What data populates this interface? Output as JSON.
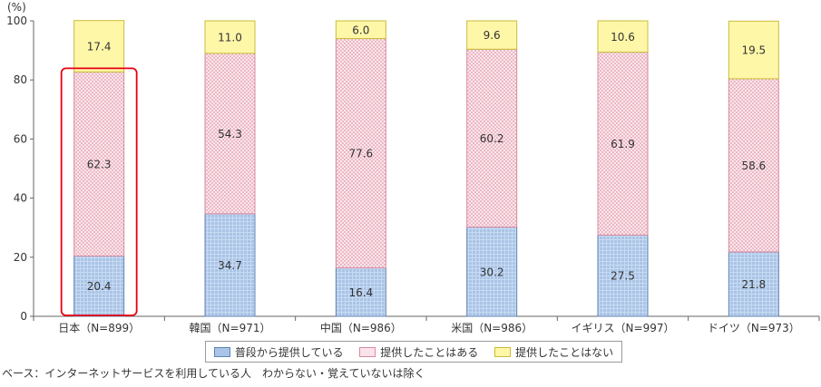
{
  "chart_data": {
    "type": "bar",
    "stacked": true,
    "unit_label": "(%)",
    "ylim": [
      0,
      100
    ],
    "yticks": [
      0,
      20,
      40,
      60,
      80,
      100
    ],
    "categories": [
      "日本（N=899）",
      "韓国（N=971）",
      "中国（N=986）",
      "米国（N=986）",
      "イギリス（N=997）",
      "ドイツ（N=973）"
    ],
    "series": [
      {
        "name": "普段から提供している",
        "values": [
          20.4,
          34.7,
          16.4,
          30.2,
          27.5,
          21.8
        ],
        "color": "#a9c4e6",
        "border": "#5f83b6",
        "pattern": "grid"
      },
      {
        "name": "提供したことはある",
        "values": [
          62.3,
          54.3,
          77.6,
          60.2,
          61.9,
          58.6
        ],
        "color": "#fbe3ea",
        "border": "#d98aa0",
        "pattern": "dots"
      },
      {
        "name": "提供したことはない",
        "values": [
          17.4,
          11.0,
          6.0,
          9.6,
          10.6,
          19.5
        ],
        "color": "#fff7a8",
        "border": "#c9bc3a",
        "pattern": "none"
      }
    ],
    "highlight_category": "日本（N=899）",
    "highlight_color": "#e60012",
    "legend_position": "bottom",
    "grid": false
  },
  "base_note": "ベース：インターネットサービスを利用している人　わからない・覚えていないは除く"
}
